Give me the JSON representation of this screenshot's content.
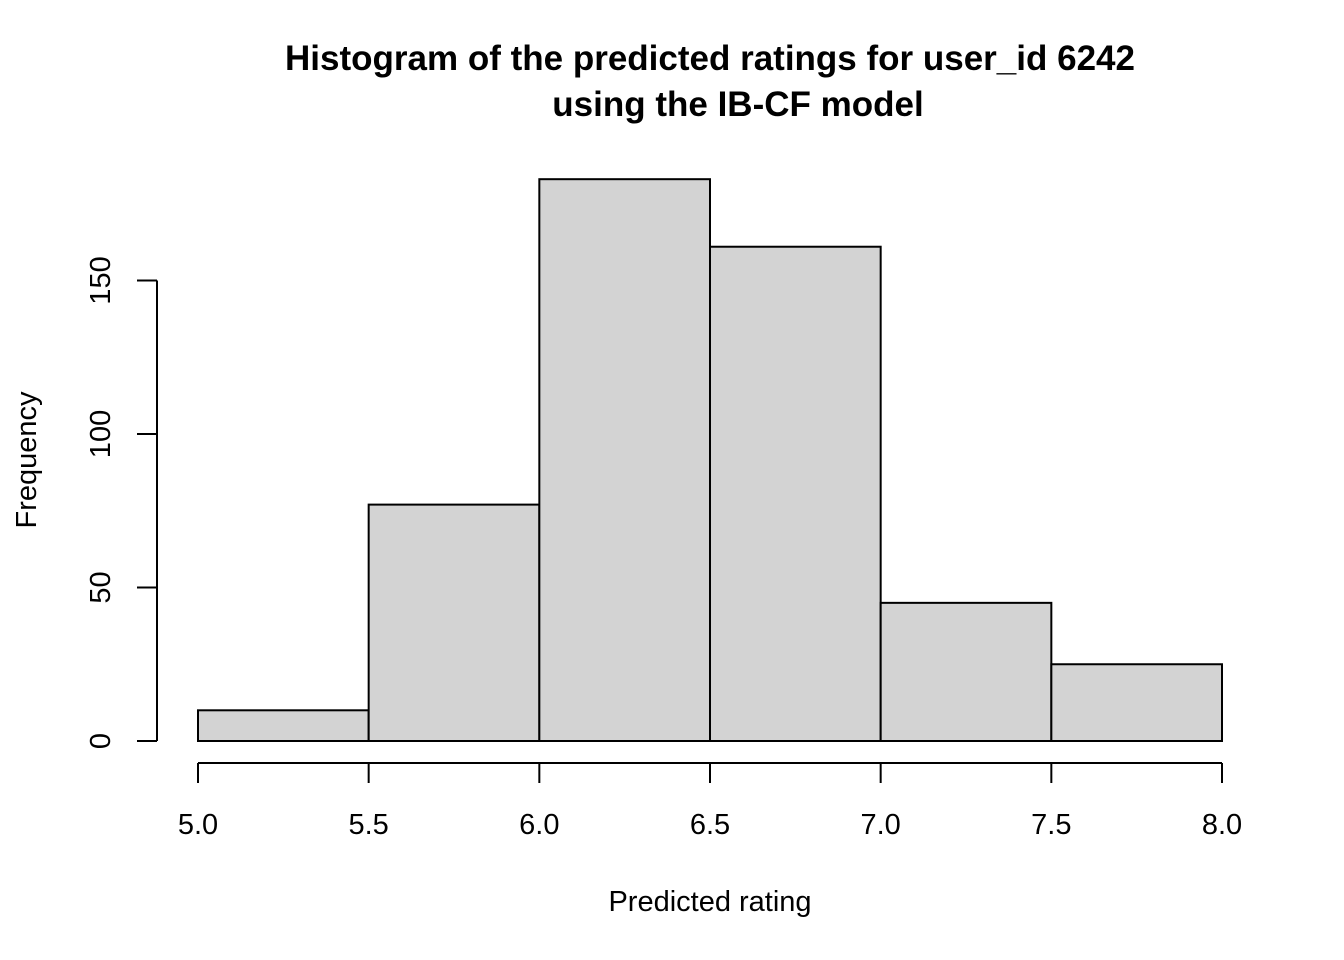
{
  "chart_data": {
    "type": "bar",
    "title": "Histogram of the predicted ratings for user_id 6242",
    "subtitle": "using the IB-CF model",
    "xlabel": "Predicted rating",
    "ylabel": "Frequency",
    "bin_edges": [
      5.0,
      5.5,
      6.0,
      6.5,
      7.0,
      7.5,
      8.0
    ],
    "categories": [
      "5.0-5.5",
      "5.5-6.0",
      "6.0-6.5",
      "6.5-7.0",
      "7.0-7.5",
      "7.5-8.0"
    ],
    "values": [
      10,
      77,
      183,
      161,
      45,
      25
    ],
    "xlim": [
      5.0,
      8.0
    ],
    "ylim": [
      0,
      183
    ],
    "x_ticks": [
      5.0,
      5.5,
      6.0,
      6.5,
      7.0,
      7.5,
      8.0
    ],
    "x_tick_labels": [
      "5.0",
      "5.5",
      "6.0",
      "6.5",
      "7.0",
      "7.5",
      "8.0"
    ],
    "y_ticks": [
      0,
      50,
      100,
      150
    ],
    "y_tick_labels": [
      "0",
      "50",
      "100",
      "150"
    ],
    "grid": false,
    "legend": "none",
    "colors": {
      "bar_fill": "#d3d3d3",
      "bar_stroke": "#000000",
      "background": "#ffffff"
    }
  }
}
